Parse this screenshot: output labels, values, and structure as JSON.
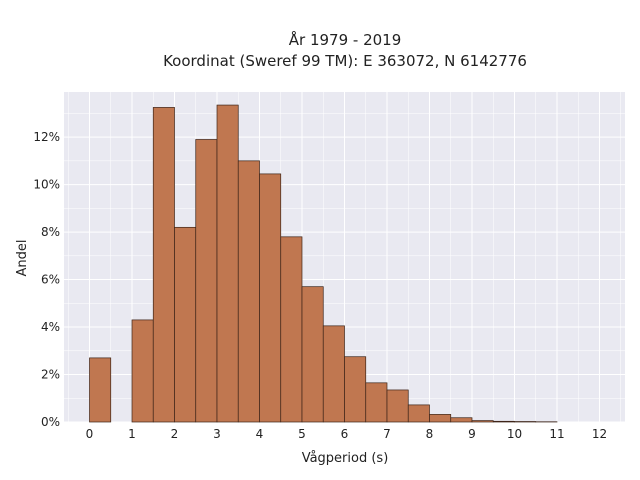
{
  "chart_data": {
    "type": "bar",
    "title_line1": "År 1979 - 2019",
    "title_line2": "Koordinat (Sweref 99 TM): E 363072, N 6142776",
    "xlabel": "Vågperiod (s)",
    "ylabel": "Andel",
    "xlim": [
      -0.6,
      12.6
    ],
    "ylim": [
      0,
      13.9
    ],
    "bin_width": 0.5,
    "x_ticks": [
      "0",
      "1",
      "2",
      "3",
      "4",
      "5",
      "6",
      "7",
      "8",
      "9",
      "10",
      "11",
      "12"
    ],
    "y_ticks": [
      "0%",
      "2%",
      "4%",
      "6%",
      "8%",
      "10%",
      "12%"
    ],
    "bins": [
      {
        "start": 0.0,
        "value": 2.7
      },
      {
        "start": 0.5,
        "value": 0.0
      },
      {
        "start": 1.0,
        "value": 4.3
      },
      {
        "start": 1.5,
        "value": 13.25
      },
      {
        "start": 2.0,
        "value": 8.2
      },
      {
        "start": 2.5,
        "value": 11.9
      },
      {
        "start": 3.0,
        "value": 13.35
      },
      {
        "start": 3.5,
        "value": 11.0
      },
      {
        "start": 4.0,
        "value": 10.45
      },
      {
        "start": 4.5,
        "value": 7.8
      },
      {
        "start": 5.0,
        "value": 5.7
      },
      {
        "start": 5.5,
        "value": 4.05
      },
      {
        "start": 6.0,
        "value": 2.75
      },
      {
        "start": 6.5,
        "value": 1.65
      },
      {
        "start": 7.0,
        "value": 1.35
      },
      {
        "start": 7.5,
        "value": 0.72
      },
      {
        "start": 8.0,
        "value": 0.32
      },
      {
        "start": 8.5,
        "value": 0.18
      },
      {
        "start": 9.0,
        "value": 0.06
      },
      {
        "start": 9.5,
        "value": 0.03
      },
      {
        "start": 10.0,
        "value": 0.02
      },
      {
        "start": 10.5,
        "value": 0.01
      }
    ],
    "bar_color": "#c07750",
    "bar_edge_color": "#3d2418",
    "background_color": "#e9e9f1",
    "grid": true,
    "grid_color": "#ffffff"
  }
}
